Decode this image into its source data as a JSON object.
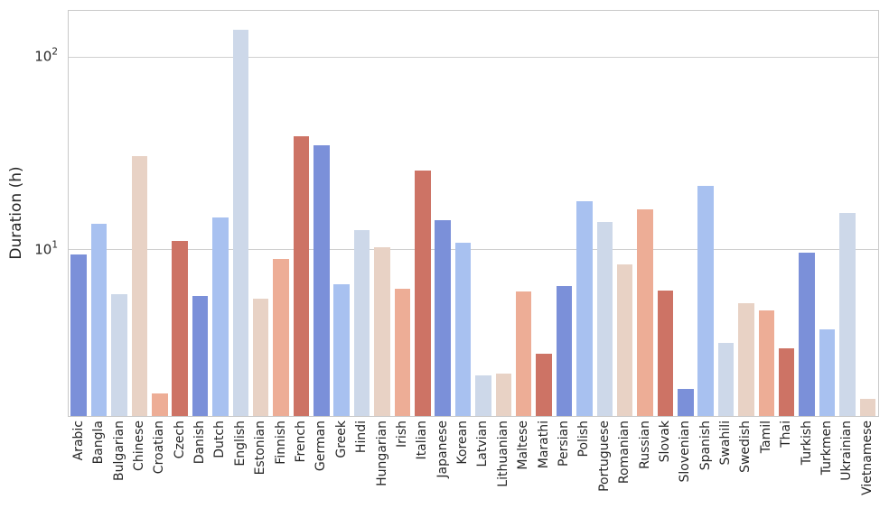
{
  "figure": {
    "background": "#ffffff",
    "text_color": "#262626",
    "grid_color": "#cfcfcf",
    "spine_color": "#c9c9c9",
    "ylabel": "Duration (h)"
  },
  "y_axis": {
    "scale": "log",
    "ticks": [
      {
        "base": "10",
        "exponent": "1",
        "value": 10
      },
      {
        "base": "10",
        "exponent": "2",
        "value": 100
      }
    ]
  },
  "chart_data": {
    "type": "bar",
    "title": "",
    "xlabel": "",
    "ylabel": "Duration (h)",
    "yscale": "log",
    "ylim": [
      1.38,
      174
    ],
    "grid": true,
    "legend_position": "none",
    "categories": [
      "Arabic",
      "Bangla",
      "Bulgarian",
      "Chinese",
      "Croatian",
      "Czech",
      "Danish",
      "Dutch",
      "English",
      "Estonian",
      "Finnish",
      "French",
      "German",
      "Greek",
      "Hindi",
      "Hungarian",
      "Irish",
      "Italian",
      "Japanese",
      "Korean",
      "Latvian",
      "Lithuanian",
      "Maltese",
      "Marathi",
      "Persian",
      "Polish",
      "Portuguese",
      "Romanian",
      "Russian",
      "Slovak",
      "Slovenian",
      "Spanish",
      "Swahili",
      "Swedish",
      "Tamil",
      "Thai",
      "Turkish",
      "Turkmen",
      "Ukrainian",
      "Vietnamese"
    ],
    "values": [
      9.5,
      13.8,
      5.9,
      31,
      1.8,
      11.2,
      5.8,
      14.8,
      139,
      5.6,
      9.0,
      39,
      35,
      6.7,
      12.7,
      10.4,
      6.3,
      26,
      14.3,
      11,
      2.25,
      2.3,
      6.1,
      2.9,
      6.5,
      18,
      14.1,
      8.5,
      16.4,
      6.2,
      1.9,
      21.5,
      3.3,
      5.3,
      4.9,
      3.1,
      9.7,
      3.9,
      15.7,
      1.7
    ],
    "palette_cycle": [
      "#7b90d9",
      "#a8c1f0",
      "#cdd8e9",
      "#e8d2c5",
      "#edad96",
      "#cd7365"
    ]
  }
}
